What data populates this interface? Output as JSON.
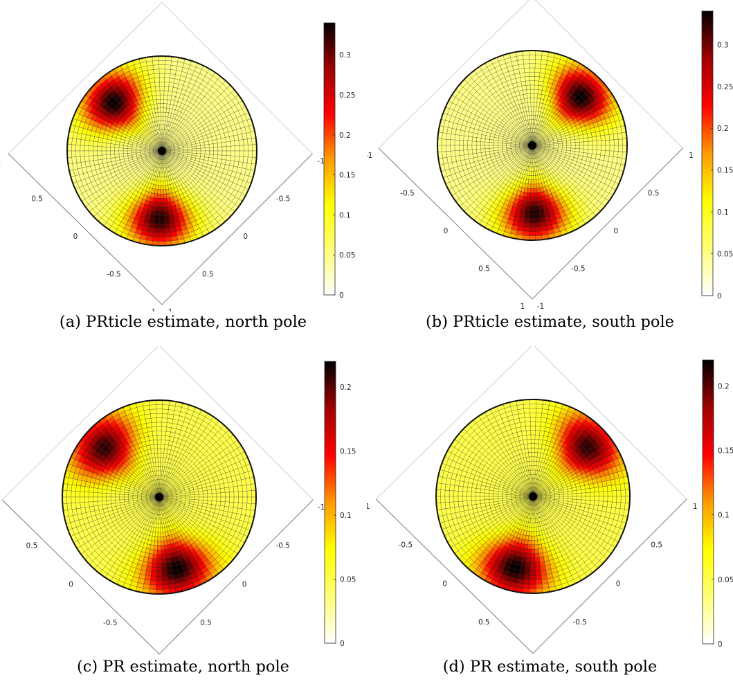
{
  "figure": {
    "panels": [
      {
        "id": "a",
        "caption": "(a) PRticle estimate, north pole"
      },
      {
        "id": "b",
        "caption": "(b) PRticle estimate, south pole"
      },
      {
        "id": "c",
        "caption": "(c) PR estimate, north pole"
      },
      {
        "id": "d",
        "caption": "(d) PR estimate, south pole"
      }
    ]
  },
  "colors": {
    "colormap": [
      "#ffffff",
      "#ffff78",
      "#ffff00",
      "#ff9a00",
      "#ff0000",
      "#a00000",
      "#000000"
    ],
    "grid": "#1a1a1a",
    "axis": "#7a7a7a"
  },
  "chart_data": [
    {
      "type": "heatmap",
      "projection": "hemisphere-top-view",
      "pole": "north",
      "clim": [
        0,
        0.34
      ],
      "colorbar_ticks": [
        "0",
        "0.05",
        "0.1",
        "0.15",
        "0.2",
        "0.25",
        "0.3"
      ],
      "colorbar_values": [
        0,
        0.05,
        0.1,
        0.15,
        0.2,
        0.25,
        0.3
      ],
      "x_ticks": [
        "1",
        "0.5",
        "0",
        "-0.5",
        "-1"
      ],
      "y_ticks": [
        "-1",
        "-0.5",
        "0",
        "0.5",
        "1"
      ],
      "peaks": [
        {
          "az_deg": 135,
          "r": 0.72,
          "value": 0.34
        },
        {
          "az_deg": 268,
          "r": 0.72,
          "value": 0.33
        }
      ],
      "background_value": 0.05
    },
    {
      "type": "heatmap",
      "projection": "hemisphere-top-view",
      "pole": "south",
      "clim": [
        0,
        0.34
      ],
      "colorbar_ticks": [
        "0",
        "0.05",
        "0.1",
        "0.15",
        "0.2",
        "0.25",
        "0.3"
      ],
      "colorbar_values": [
        0,
        0.05,
        0.1,
        0.15,
        0.2,
        0.25,
        0.3
      ],
      "x_ticks": [
        "-1",
        "-0.5",
        "0",
        "0.5",
        "1"
      ],
      "y_ticks": [
        "1",
        "0.5",
        "0",
        "-0.5",
        "-1"
      ],
      "peaks": [
        {
          "az_deg": 45,
          "r": 0.72,
          "value": 0.34
        },
        {
          "az_deg": 272,
          "r": 0.72,
          "value": 0.33
        }
      ],
      "background_value": 0.05
    },
    {
      "type": "heatmap",
      "projection": "hemisphere-top-view",
      "pole": "north",
      "clim": [
        0,
        0.22
      ],
      "colorbar_ticks": [
        "0",
        "0.05",
        "0.1",
        "0.15",
        "0.2"
      ],
      "colorbar_values": [
        0,
        0.05,
        0.1,
        0.15,
        0.2
      ],
      "x_ticks": [
        "1",
        "0.5",
        "0",
        "-0.5",
        "-1"
      ],
      "y_ticks": [
        "-1",
        "-0.5",
        "0",
        "0.5",
        "1"
      ],
      "peaks": [
        {
          "az_deg": 138,
          "r": 0.76,
          "value": 0.21
        },
        {
          "az_deg": 284,
          "r": 0.76,
          "value": 0.22
        }
      ],
      "background_value": 0.05
    },
    {
      "type": "heatmap",
      "projection": "hemisphere-top-view",
      "pole": "south",
      "clim": [
        0,
        0.22
      ],
      "colorbar_ticks": [
        "0",
        "0.05",
        "0.1",
        "0.15",
        "0.2"
      ],
      "colorbar_values": [
        0,
        0.05,
        0.1,
        0.15,
        0.2
      ],
      "x_ticks": [
        "-1",
        "-0.5",
        "0",
        "0.5",
        "1"
      ],
      "y_ticks": [
        "1",
        "0.5",
        "0",
        "-0.5",
        "-1"
      ],
      "peaks": [
        {
          "az_deg": 42,
          "r": 0.76,
          "value": 0.21
        },
        {
          "az_deg": 256,
          "r": 0.76,
          "value": 0.22
        }
      ],
      "background_value": 0.05
    }
  ]
}
